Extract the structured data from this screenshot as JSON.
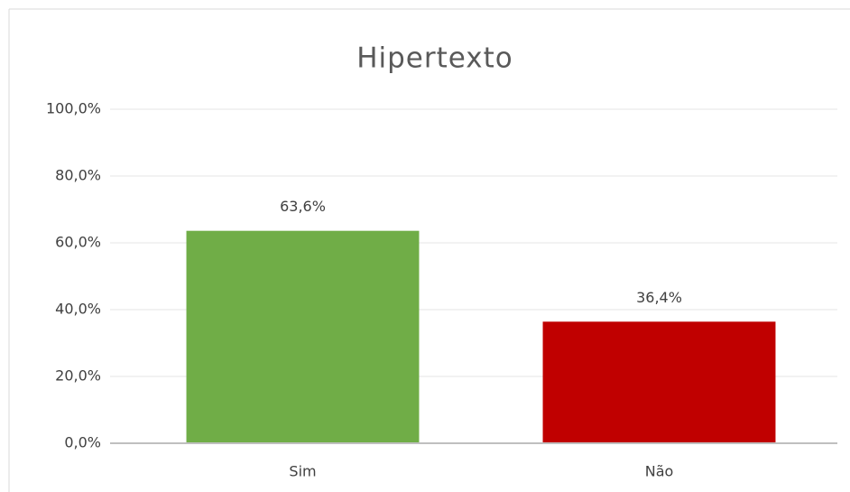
{
  "chart_data": {
    "type": "bar",
    "title": "Hipertexto",
    "categories": [
      "Sim",
      "Não"
    ],
    "values": [
      63.6,
      36.4
    ],
    "value_labels": [
      "63,6%",
      "36,4%"
    ],
    "colors": [
      "#70ad47",
      "#c00000"
    ],
    "ylim": [
      0,
      100
    ],
    "yticks": [
      {
        "value": 0,
        "label": "0,0%"
      },
      {
        "value": 20,
        "label": "20,0%"
      },
      {
        "value": 40,
        "label": "40,0%"
      },
      {
        "value": 60,
        "label": "60,0%"
      },
      {
        "value": 80,
        "label": "80,0%"
      },
      {
        "value": 100,
        "label": "100,0%"
      }
    ],
    "grid": true
  }
}
